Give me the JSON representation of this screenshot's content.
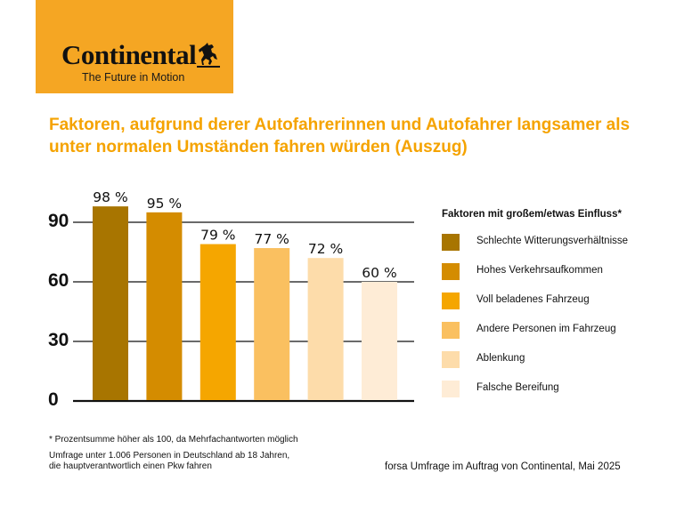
{
  "logo": {
    "wordmark": "Continental",
    "tagline": "The Future in Motion",
    "background": "#f5a623"
  },
  "title": "Faktoren, aufgrund derer Autofahrerinnen und Autofahrer langsamer als unter normalen Umständen fahren würden (Auszug)",
  "legend": {
    "title": "Faktoren mit großem/etwas Einfluss*"
  },
  "chart_data": {
    "type": "bar",
    "title": "Faktoren, aufgrund derer Autofahrerinnen und Autofahrer langsamer als unter normalen Umständen fahren würden (Auszug)",
    "xlabel": "",
    "ylabel": "",
    "ylim": [
      0,
      100
    ],
    "yticks": [
      0,
      30,
      60,
      90
    ],
    "grid": true,
    "legend_position": "right",
    "categories": [
      "Schlechte Witterungsverhältnisse",
      "Hohes Verkehrsaufkommen",
      "Voll beladenes Fahrzeug",
      "Andere Personen im Fahrzeug",
      "Ablenkung",
      "Falsche Bereifung"
    ],
    "values": [
      98,
      95,
      79,
      77,
      72,
      60
    ],
    "value_labels": [
      "98 %",
      "95 %",
      "79 %",
      "77 %",
      "72 %",
      "60 %"
    ],
    "colors": [
      "#a87500",
      "#d48c00",
      "#f5a600",
      "#fac060",
      "#fddcaa",
      "#feecd6"
    ]
  },
  "footnotes": {
    "asterisk": "* Prozentsumme höher als 100, da Mehrfachantworten möglich",
    "survey_line1": "Umfrage unter 1.006 Personen in Deutschland ab 18 Jahren,",
    "survey_line2": "die hauptverantwortlich einen Pkw fahren",
    "source": "forsa Umfrage im Auftrag von Continental, Mai 2025"
  }
}
